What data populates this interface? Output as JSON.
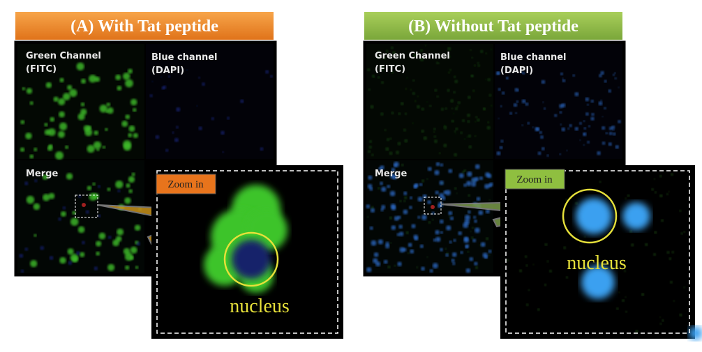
{
  "panels": [
    {
      "title": "(A) With Tat peptide",
      "green_label": [
        "Green Channel",
        "(FITC)"
      ],
      "blue_label": [
        "Blue channel",
        "(DAPI)"
      ],
      "merge_label": "Merge",
      "zoom_label": "Zoom in",
      "nucleus_label": "nucleus"
    },
    {
      "title": "(B) Without Tat peptide",
      "green_label": [
        "Green Channel",
        "(FITC)"
      ],
      "blue_label": [
        "Blue channel",
        "(DAPI)"
      ],
      "merge_label": "Merge",
      "zoom_label": "Zoom in",
      "nucleus_label": "nucleus"
    }
  ]
}
